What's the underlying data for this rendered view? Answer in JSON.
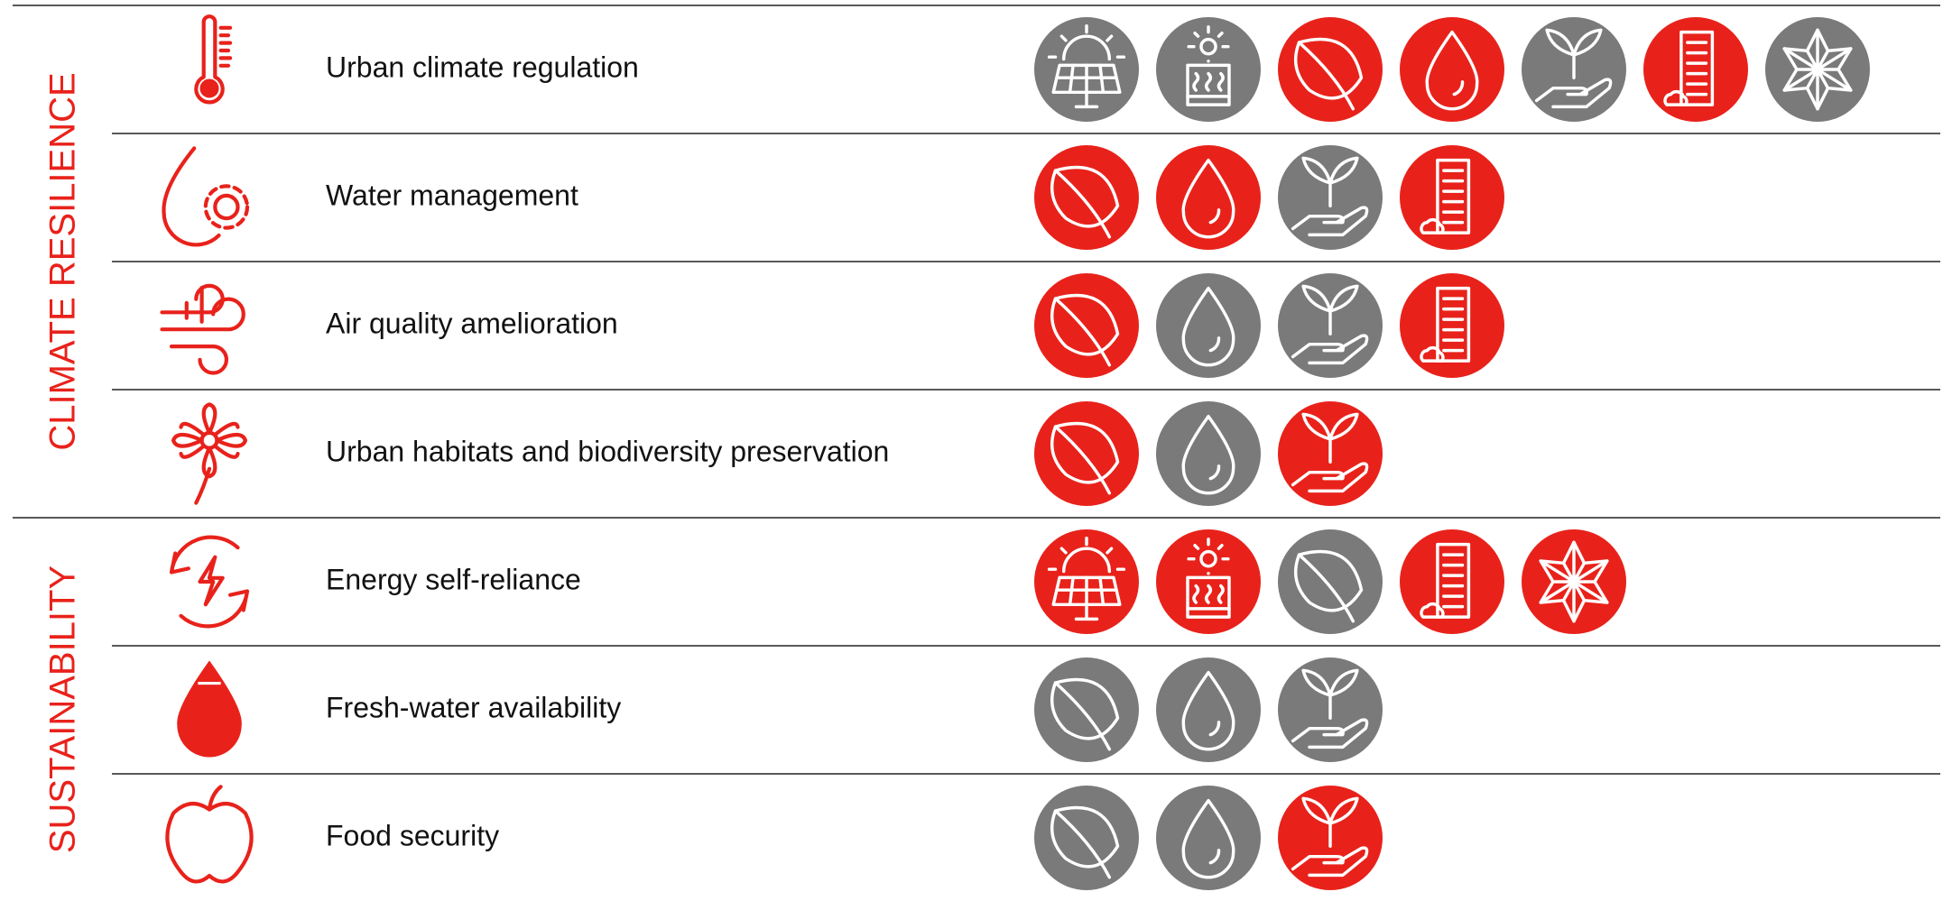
{
  "groups": [
    {
      "title": "CLIMATE RESILIENCE",
      "rows": [
        {
          "label": "Urban climate regulation",
          "icons": [
            {
              "icon": "solar",
              "color": "#7a7a7a"
            },
            {
              "icon": "thermal",
              "color": "#7a7a7a"
            },
            {
              "icon": "leaf",
              "color": "#e8221b"
            },
            {
              "icon": "drop",
              "color": "#e8221b"
            },
            {
              "icon": "sprout",
              "color": "#7a7a7a"
            },
            {
              "icon": "building",
              "color": "#e8221b"
            },
            {
              "icon": "star",
              "color": "#7a7a7a"
            }
          ]
        },
        {
          "label": "Water management",
          "icons": [
            {
              "icon": "leaf",
              "color": "#e8221b"
            },
            {
              "icon": "drop",
              "color": "#e8221b"
            },
            {
              "icon": "sprout",
              "color": "#7a7a7a"
            },
            {
              "icon": "building",
              "color": "#e8221b"
            }
          ]
        },
        {
          "label": "Air quality amelioration",
          "icons": [
            {
              "icon": "leaf",
              "color": "#e8221b"
            },
            {
              "icon": "drop",
              "color": "#7a7a7a"
            },
            {
              "icon": "sprout",
              "color": "#7a7a7a"
            },
            {
              "icon": "building",
              "color": "#e8221b"
            }
          ]
        },
        {
          "label": "Urban habitats and biodiversity preservation",
          "icons": [
            {
              "icon": "leaf",
              "color": "#e8221b"
            },
            {
              "icon": "drop",
              "color": "#7a7a7a"
            },
            {
              "icon": "sprout",
              "color": "#e8221b"
            }
          ]
        }
      ]
    },
    {
      "title": "SUSTAINABILITY",
      "rows": [
        {
          "label": "Energy self-reliance",
          "icons": [
            {
              "icon": "solar",
              "color": "#e8221b"
            },
            {
              "icon": "thermal",
              "color": "#e8221b"
            },
            {
              "icon": "leaf",
              "color": "#7a7a7a"
            },
            {
              "icon": "building",
              "color": "#e8221b"
            },
            {
              "icon": "star",
              "color": "#e8221b"
            }
          ]
        },
        {
          "label": "Fresh-water availability",
          "icons": [
            {
              "icon": "leaf",
              "color": "#7a7a7a"
            },
            {
              "icon": "drop",
              "color": "#7a7a7a"
            },
            {
              "icon": "sprout",
              "color": "#7a7a7a"
            }
          ]
        },
        {
          "label": "Food security",
          "icons": [
            {
              "icon": "leaf",
              "color": "#7a7a7a"
            },
            {
              "icon": "drop",
              "color": "#7a7a7a"
            },
            {
              "icon": "sprout",
              "color": "#e8221b"
            }
          ]
        }
      ]
    }
  ]
}
